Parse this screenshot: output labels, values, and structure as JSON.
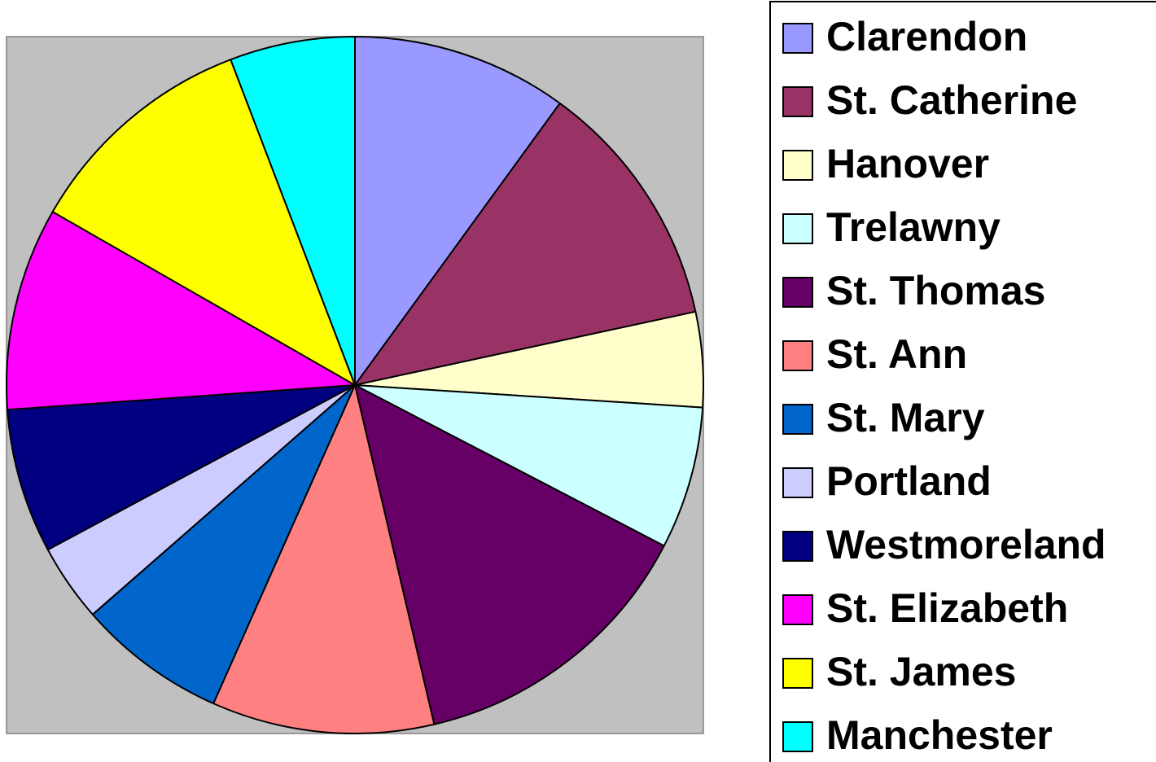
{
  "chart_data": {
    "type": "pie",
    "categories": [
      "Clarendon",
      "St. Catherine",
      "Hanover",
      "Trelawny",
      "St. Thomas",
      "St. Ann",
      "St. Mary",
      "Portland",
      "Westmoreland",
      "St. Elizabeth",
      "St. James",
      "Manchester"
    ],
    "values": [
      10.0,
      11.6,
      4.4,
      6.6,
      13.7,
      10.3,
      6.9,
      3.6,
      6.7,
      9.4,
      10.9,
      5.8
    ],
    "colors": [
      "#9999ff",
      "#993366",
      "#ffffcc",
      "#ccffff",
      "#660066",
      "#ff8080",
      "#0066cc",
      "#ccccff",
      "#000080",
      "#ff00ff",
      "#ffff00",
      "#00ffff"
    ],
    "legend": "right"
  }
}
